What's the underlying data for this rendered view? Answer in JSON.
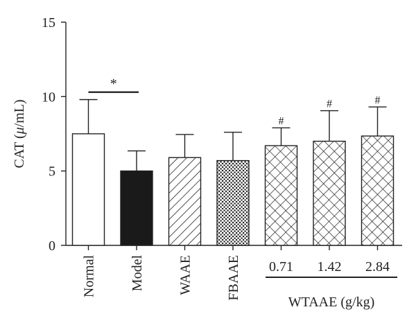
{
  "chart_data": {
    "type": "bar",
    "ylabel_prefix": "CAT (",
    "ylabel_mu": "μ",
    "ylabel_suffix": "/mL)",
    "ylim": [
      0,
      15
    ],
    "yticks": [
      0,
      5,
      10,
      15
    ],
    "categories": [
      "Normal",
      "Model",
      "WAAE",
      "FBAAE",
      "0.71",
      "1.42",
      "2.84"
    ],
    "values": [
      7.5,
      5.0,
      5.9,
      5.7,
      6.7,
      7.0,
      7.35
    ],
    "errors": [
      2.3,
      1.35,
      1.55,
      1.9,
      1.2,
      2.05,
      1.95
    ],
    "patterns": [
      "empty",
      "solid",
      "diagonal",
      "dots",
      "crosshatch",
      "crosshatch",
      "crosshatch"
    ],
    "group_label": "WTAAE (g/kg)",
    "annotations": [
      {
        "text": "*",
        "bracket": [
          0,
          1
        ],
        "y": 10.3
      },
      {
        "text": "#",
        "bar": 4
      },
      {
        "text": "#",
        "bar": 5
      },
      {
        "text": "#",
        "bar": 6
      }
    ]
  }
}
